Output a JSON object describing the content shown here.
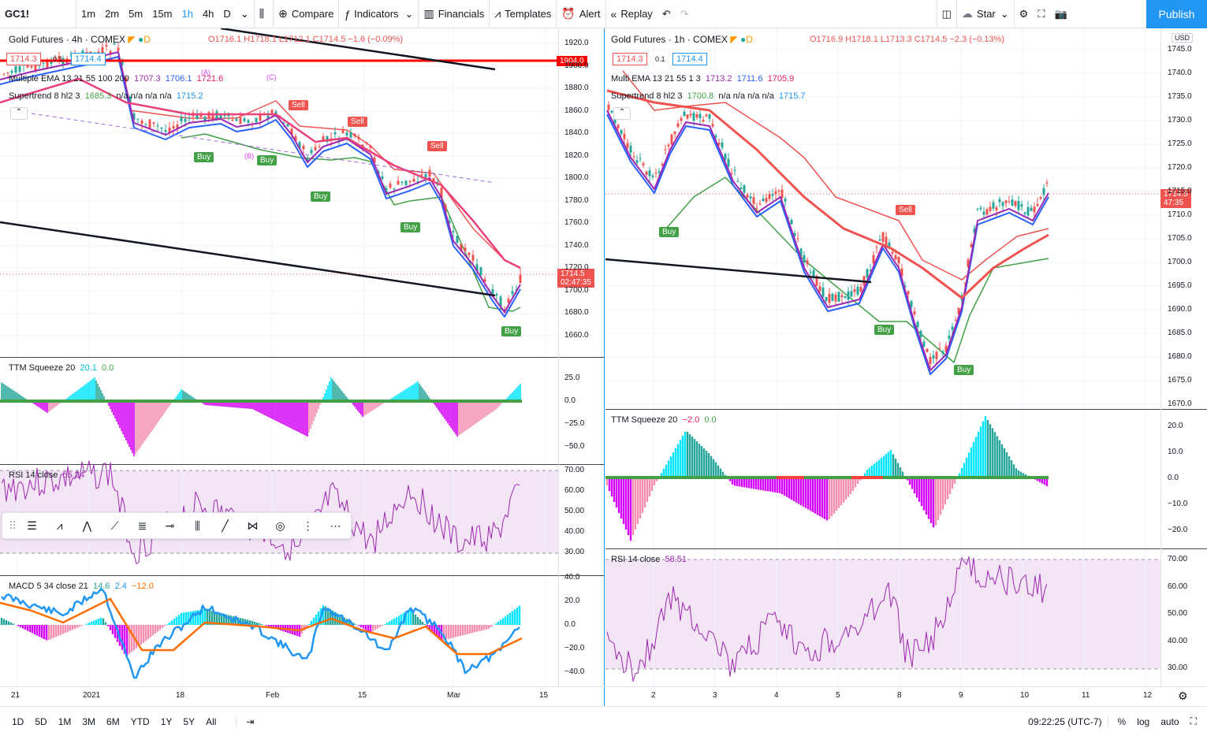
{
  "toolbar": {
    "symbol": "GC1!",
    "intervals": [
      "1m",
      "2m",
      "5m",
      "15m",
      "1h",
      "4h",
      "D"
    ],
    "active_interval": "1h",
    "compare": "Compare",
    "indicators": "Indicators",
    "financials": "Financials",
    "templates": "Templates",
    "alert": "Alert",
    "replay": "Replay",
    "star": "Star",
    "publish": "Publish"
  },
  "left_chart": {
    "title": "Gold Futures · 4h · COMEX",
    "ohlc": "O1716.1  H1718.1  L1712.1  C1714.5  −1.6 (−0.09%)",
    "bid": "1714.3",
    "spread": "0.1",
    "ask": "1714.4",
    "ema_label": "Multiple EMA 13 21 55 100 200",
    "ema_v1": "1707.3",
    "ema_v2": "1706.1",
    "ema_v3": "1721.6",
    "st_label": "Supertrend 8 hl2 3",
    "st_v1": "1685.3",
    "st_nas": "n/a  n/a  n/a  n/a",
    "st_v2": "1715.2",
    "hline_price": "1904.0",
    "last_price": "1714.5",
    "countdown": "02:47:35",
    "price_ticks": [
      "1920.0",
      "1900.0",
      "1880.0",
      "1860.0",
      "1840.0",
      "1820.0",
      "1800.0",
      "1780.0",
      "1760.0",
      "1740.0",
      "1720.0",
      "1700.0",
      "1680.0",
      "1660.0"
    ],
    "ttm_label": "TTM Squeeze 20",
    "ttm_v1": "20.1",
    "ttm_v2": "0.0",
    "ttm_ticks": [
      "25.0",
      "0.0",
      "−25.0",
      "−50.0"
    ],
    "rsi_label": "RSI 14 close",
    "rsi_v": "55.24",
    "rsi_ticks": [
      "70.00",
      "60.00",
      "50.00",
      "40.00",
      "30.00"
    ],
    "macd_label": "MACD 5 34 close 21",
    "macd_v1": "14.6",
    "macd_v2": "2.4",
    "macd_v3": "−12.0",
    "macd_ticks": [
      "40.0",
      "20.0",
      "0.0",
      "−20.0",
      "−40.0"
    ],
    "time_ticks": [
      "21",
      "2021",
      "18",
      "Feb",
      "15",
      "Mar",
      "15"
    ],
    "wave_labels": [
      "(A)",
      "(B)",
      "(C)"
    ],
    "signals": {
      "buy": "Buy",
      "sell": "Sell"
    }
  },
  "right_chart": {
    "title": "Gold Futures · 1h · COMEX",
    "ohlc": "O1716.9  H1718.1  L1713.3  C1714.5  −2.3 (−0.13%)",
    "bid": "1714.3",
    "spread": "0.1",
    "ask": "1714.4",
    "ema_label": "Multi EMA 13 21 55 1 3",
    "ema_v1": "1713.2",
    "ema_v2": "1711.6",
    "ema_v3": "1705.9",
    "st_label": "Supertrend 8 hl2 3",
    "st_v1": "1700.8",
    "st_nas": "n/a  n/a  n/a  n/a",
    "st_v2": "1715.7",
    "currency": "USD",
    "last_price": "1714.5",
    "countdown": "47:35",
    "price_ticks": [
      "1745.0",
      "1740.0",
      "1735.0",
      "1730.0",
      "1725.0",
      "1720.0",
      "1715.0",
      "1710.0",
      "1705.0",
      "1700.0",
      "1695.0",
      "1690.0",
      "1685.0",
      "1680.0",
      "1675.0",
      "1670.0"
    ],
    "ttm_label": "TTM Squeeze 20",
    "ttm_v1": "−2.0",
    "ttm_v2": "0.0",
    "ttm_ticks": [
      "20.0",
      "10.0",
      "0.0",
      "−10.0",
      "−20.0"
    ],
    "rsi_label": "RSI 14 close",
    "rsi_v": "58.51",
    "rsi_ticks": [
      "70.00",
      "60.00",
      "50.00",
      "40.00",
      "30.00"
    ],
    "time_ticks": [
      "2",
      "3",
      "4",
      "5",
      "8",
      "9",
      "10",
      "11",
      "12"
    ],
    "signals": {
      "buy": "Buy",
      "sell": "Sell"
    }
  },
  "bottom": {
    "ranges": [
      "1D",
      "5D",
      "1M",
      "3M",
      "6M",
      "YTD",
      "1Y",
      "5Y",
      "All"
    ],
    "clock": "09:22:25 (UTC-7)",
    "percent": "%",
    "log": "log",
    "auto": "auto"
  },
  "colors": {
    "up": "#26a69a",
    "down": "#ef5350",
    "accent": "#2196f3",
    "rsi_bg": "#f3e5f5"
  }
}
